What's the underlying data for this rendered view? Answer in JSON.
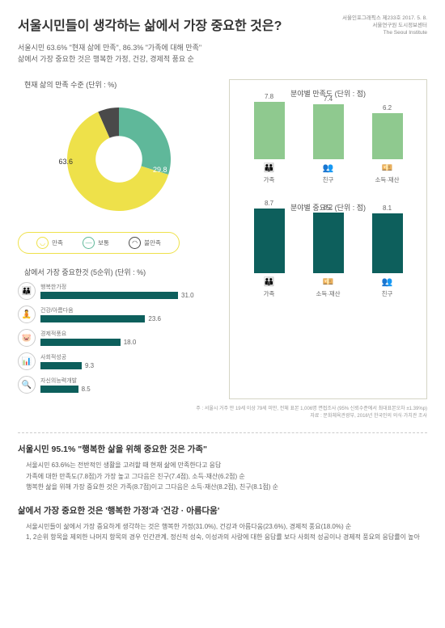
{
  "header": {
    "title": "서울시민들이 생각하는 삶에서 가장 중요한 것은?",
    "meta1": "서울인포그래픽스 제233호 2017. 5. 8.",
    "meta2": "서울연구원 도시정보센터",
    "meta3": "The Seoul Institute",
    "subtitle1": "서울시민 63.6% \"현재 삶에 만족\", 86.3% \"가족에 대해 만족\"",
    "subtitle2": "삶에서 가장 중요한 것은 행복한 가정, 건강, 경제적 풍요 순"
  },
  "donut": {
    "title": "현재 삶의 만족 수준 (단위 : %)",
    "slices": [
      {
        "label": "63.6",
        "value": 63.6,
        "color": "#eee14a"
      },
      {
        "label": "29.8",
        "value": 29.8,
        "color": "#5fb89a"
      },
      {
        "label": "6.6",
        "value": 6.6,
        "color": "#4a4a4a"
      }
    ],
    "legend": [
      {
        "label": "만족",
        "color": "#eee14a"
      },
      {
        "label": "보통",
        "color": "#5fb89a"
      },
      {
        "label": "불만족",
        "color": "#4a4a4a"
      }
    ]
  },
  "hbars": {
    "title": "삶에서 가장 중요한것 (5순위) (단위 : %)",
    "max": 31,
    "items": [
      {
        "label": "행복한가정",
        "value": 31.0,
        "icon": "👪"
      },
      {
        "label": "건강/아름다움",
        "value": 23.6,
        "icon": "🧘"
      },
      {
        "label": "경제적풍요",
        "value": 18.0,
        "icon": "🐷"
      },
      {
        "label": "사회적성공",
        "value": 9.3,
        "icon": "📊"
      },
      {
        "label": "자신의능력개발",
        "value": 8.5,
        "icon": "🔍"
      }
    ]
  },
  "sat": {
    "title": "분야별 만족도 (단위 : 점)",
    "max": 8.7,
    "color": "#8fc98f",
    "items": [
      {
        "label": "가족",
        "value": 7.8,
        "icon": "👪"
      },
      {
        "label": "친구",
        "value": 7.4,
        "icon": "👥"
      },
      {
        "label": "소득·재산",
        "value": 6.2,
        "icon": "💴"
      }
    ]
  },
  "imp": {
    "title": "분야별 중요도 (단위 : 점)",
    "max": 8.7,
    "color": "#0d5f5c",
    "items": [
      {
        "label": "가족",
        "value": 8.7,
        "icon": "👪"
      },
      {
        "label": "소득·재산",
        "value": 8.2,
        "icon": "💴"
      },
      {
        "label": "친구",
        "value": 8.1,
        "icon": "👥"
      }
    ]
  },
  "footnote": {
    "l1": "주 : 서울시 거주 만 19세 이상 79세 미만, 전체 표본 1,006명 면접조사 (95% 신뢰수준에서 최대표본오차 ±1.39%p)",
    "l2": "자료 : 문화체육관광부, 2016년 한국인의 의식·가치관 조사"
  },
  "sec1": {
    "title": "서울시민 95.1% \"행복한 삶을 위해 중요한 것은 가족\"",
    "l1": "서울시민 63.6%는 전반적인 생활을 고려할 때 현재 삶에 만족한다고 응답",
    "l2": "가족에 대한 만족도(7.8점)가 가장 높고 그다음은 친구(7.4점), 소득·재산(6.2점) 순",
    "l3": "행복한 삶을 위해 가장 중요한 것은 가족(8.7점)이고 그다음은 소득·재산(8.2점), 친구(8.1점) 순"
  },
  "sec2": {
    "title": "삶에서 가장 중요한 것은 '행복한 가정'과 '건강 · 아름다움'",
    "l1": "서울시민들이 삶에서 가장 중요하게 생각하는 것은 행복한 가정(31.0%), 건강과 아름다움(23.6%), 경제적 풍요(18.0%) 순",
    "l2": "1, 2순위 항목을 제외한 나머지 항목의 경우 인간관계, 정신적 성숙, 이성과의 사랑에 대한 응답률 보다 사회적 성공이나 경제적 풍요의 응답률이 높아"
  }
}
